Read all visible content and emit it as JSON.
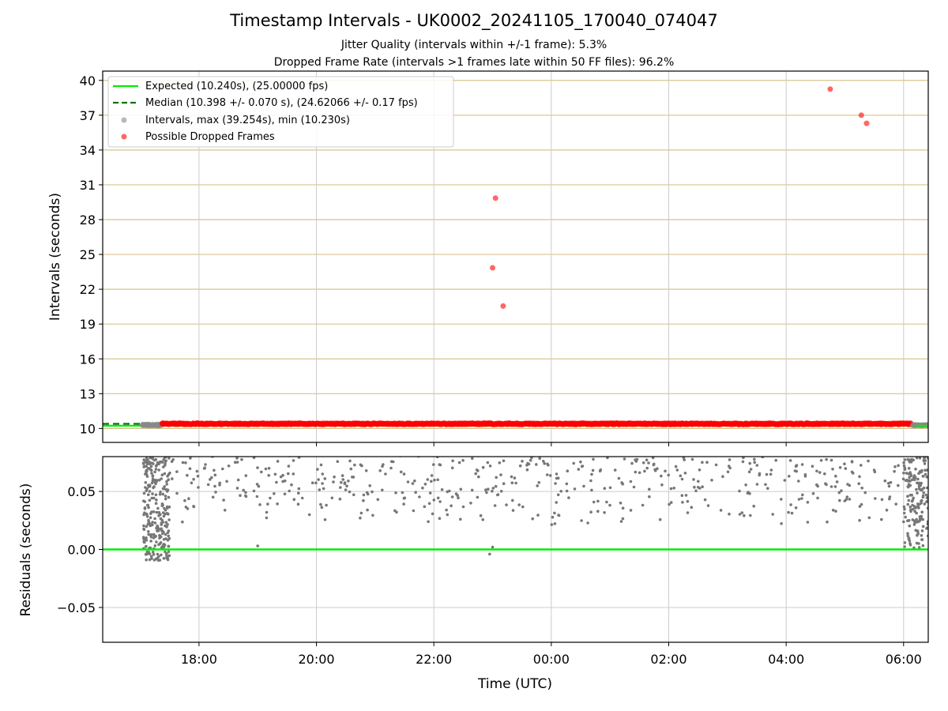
{
  "title": "Timestamp Intervals - UK0002_20241105_170040_074047",
  "subtitle_1": "Jitter Quality (intervals within +/-1 frame): 5.3%",
  "subtitle_2": "Dropped Frame Rate (intervals >1 frames late within 50 FF files): 96.2%",
  "colors": {
    "expected": "#00ee00",
    "median": "#007700",
    "interval": "#888888",
    "dropped": "#ff0000",
    "residual": "#777777",
    "hgrid_top": "#d6c48e",
    "grid": "#cccccc"
  },
  "chart_data": [
    {
      "type": "scatter",
      "ylabel": "Intervals (seconds)",
      "x_unit": "hours since 2024-11-05 00:00 UTC",
      "xlim": [
        16.36,
        30.42
      ],
      "ylim": [
        8.8,
        40.8
      ],
      "yticks": [
        "10",
        "13",
        "16",
        "19",
        "22",
        "25",
        "28",
        "31",
        "34",
        "37",
        "40"
      ],
      "grid": "on",
      "legend_placement": "top-left",
      "legend": [
        "Expected (10.240s), (25.00000 fps)",
        "Median (10.398 +/- 0.070 s), (24.62066 +/- 0.17 fps)",
        "Intervals, max (39.254s), min (10.230s)",
        "Possible Dropped Frames"
      ],
      "expected_value": 10.24,
      "median_value": 10.398,
      "median_std": 0.07,
      "interval_max": 39.254,
      "interval_min": 10.23,
      "dropped_band": {
        "x_start": 17.37,
        "x_end": 30.12,
        "y_center": 10.4,
        "y_spread": 0.06
      },
      "dropped_outliers": [
        {
          "x": 23.05,
          "y": 29.85
        },
        {
          "x": 23.0,
          "y": 23.85
        },
        {
          "x": 23.18,
          "y": 20.55
        },
        {
          "x": 28.75,
          "y": 39.25
        },
        {
          "x": 29.28,
          "y": 37.0
        },
        {
          "x": 29.37,
          "y": 36.3
        }
      ]
    },
    {
      "type": "scatter",
      "xlabel": "Time (UTC)",
      "ylabel": "Residuals (seconds)",
      "xlim": [
        16.36,
        30.42
      ],
      "ylim": [
        -0.08,
        0.08
      ],
      "yticks": [
        "−0.05",
        "0.00",
        "0.05"
      ],
      "xticks": [
        "18:00",
        "20:00",
        "22:00",
        "00:00",
        "02:00",
        "04:00",
        "06:00"
      ],
      "xtick_values": [
        18,
        20,
        22,
        24,
        26,
        28,
        30
      ],
      "grid": "on",
      "zero_line": 0.0,
      "residual_range": [
        -0.01,
        0.08
      ]
    }
  ]
}
